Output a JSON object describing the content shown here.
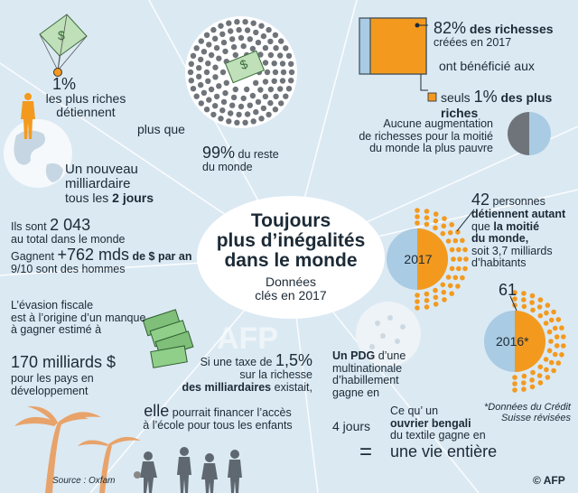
{
  "title": {
    "line1": "Toujours",
    "line2": "plus d’inégalités",
    "line3": "dans le monde",
    "sub1": "Données",
    "sub2": "clés en 2017"
  },
  "topleft": {
    "pct": "1%",
    "l1": "les plus riches",
    "l2": "détiennent",
    "plus_que": "plus que",
    "pct99": "99%",
    "du_reste": " du reste",
    "du_monde": "du monde"
  },
  "topright": {
    "pct82": "82%",
    "richesses": " des richesses",
    "creees": "créées en 2017",
    "ont_beneficie": "ont bénéficié aux",
    "seuls": "seuls ",
    "pct1": "1%",
    "plus_riches": " des plus riches",
    "aucune1": "Aucune augmentation",
    "aucune2": "de richesses pour la moitié",
    "aucune3": "du monde la plus pauvre"
  },
  "billionaire": {
    "l1": "Un nouveau",
    "l2": "milliardaire",
    "l3a": "tous les ",
    "l3b": "2 jours",
    "sont_a": "Ils sont ",
    "sont_b": "2 043",
    "total": "au total dans le monde",
    "gagnent_a": "Gagnent ",
    "gagnent_b": "+762 mds",
    "gagnent_c": " de $ par an",
    "hommes": "9/10 sont des hommes"
  },
  "evasion": {
    "l1": "L’évasion fiscale",
    "l2": "est à l’origine d’un manque",
    "l3": "à gagner estimé à",
    "amount": "170 milliards $",
    "l4": "pour les pays en",
    "l5": "développement"
  },
  "tax": {
    "l1": "Si une taxe de ",
    "pct": "1,5%",
    "l2": "sur la richesse",
    "l3": "des milliardaires",
    "l3b": " existait,",
    "l4a": "elle",
    "l4b": " pourrait financer l’accès",
    "l5": "à l’école pour tous les enfants"
  },
  "pdg": {
    "l1": "Un PDG",
    "l1b": " d’une",
    "l2": "multinationale",
    "l3": "d’habillement",
    "l4": "gagne en",
    "jours": "4 jours",
    "c1": "Ce qu’ un",
    "c2": "ouvrier bengali",
    "c3": "du textile gagne en",
    "eq": "=",
    "vie": "une vie entière"
  },
  "people": {
    "num42": "42",
    "personnes": " personnes",
    "l2": "détiennent autant",
    "l3a": "que ",
    "l3b": "la moitié",
    "l4": "du monde,",
    "l5": "soit 3,7 milliards",
    "l6": "d’habitants",
    "year2017": "2017",
    "num61": "61",
    "year2016": "2016*",
    "note1": "*Données du Crédit",
    "note2": "Suisse révisées"
  },
  "footer": {
    "source": "Source : Oxfam",
    "logo": "© AFP"
  },
  "colors": {
    "orange": "#f39a1e",
    "background": "#dbe9f3",
    "grey_dot": "#6f747a",
    "light_blue": "#a9cbe3",
    "money_green": "#7fbf7a",
    "palm": "#e8a36a"
  }
}
